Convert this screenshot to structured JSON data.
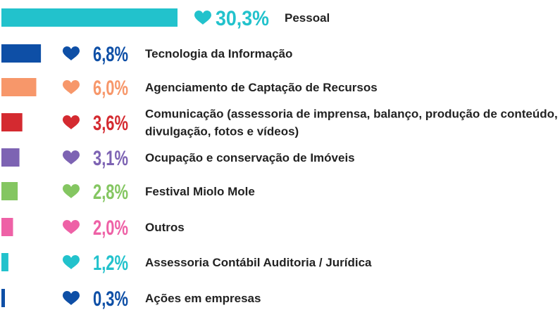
{
  "chart_data": {
    "type": "bar",
    "orientation": "horizontal",
    "categories": [
      "Pessoal",
      "Tecnologia da Informação",
      "Agenciamento de Captação de Recursos",
      "Comunicação (assessoria de imprensa, balanço, produção de conteúdo, divulgação, fotos e vídeos)",
      "Ocupação e conservação de Imóveis",
      "Festival Miolo Mole",
      "Outros",
      "Assessoria Contábil Auditoria / Jurídica",
      "Ações em empresas"
    ],
    "label_lines": [
      [
        "Pessoal"
      ],
      [
        "Tecnologia da Informação"
      ],
      [
        "Agenciamento de Captação de Recursos"
      ],
      [
        "Comunicação (assessoria de imprensa, balanço, produção de conteúdo,",
        "divulgação, fotos e vídeos)"
      ],
      [
        "Ocupação e conservação de Imóveis"
      ],
      [
        "Festival Miolo Mole"
      ],
      [
        "Outros"
      ],
      [
        "Assessoria Contábil Auditoria / Jurídica"
      ],
      [
        "Ações em empresas"
      ]
    ],
    "values": [
      30.3,
      6.8,
      6.0,
      3.6,
      3.1,
      2.8,
      2.0,
      1.2,
      0.3
    ],
    "value_labels": [
      "30,3%",
      "6,8%",
      "6,0%",
      "3,6%",
      "3,1%",
      "2,8%",
      "2,0%",
      "1,2%",
      "0,3%"
    ],
    "colors": [
      "#22c2cc",
      "#0e4fa6",
      "#f7976a",
      "#d42a30",
      "#7d63b3",
      "#84c661",
      "#ee61a6",
      "#22c2cc",
      "#0e4fa6"
    ],
    "icon": "heart-icon",
    "xlabel": "",
    "ylabel": ""
  }
}
